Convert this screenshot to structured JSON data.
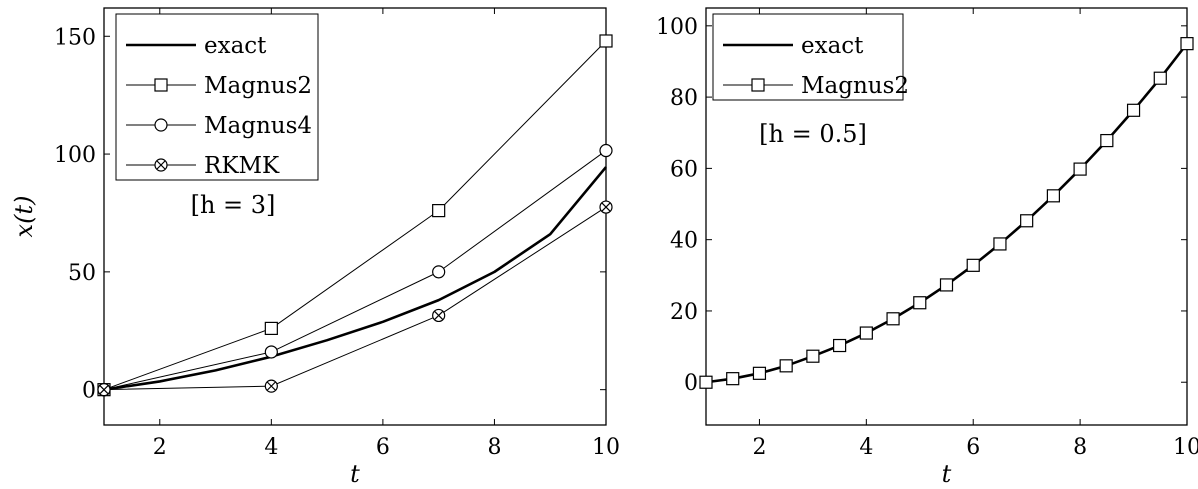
{
  "chart_data": [
    {
      "type": "line",
      "xlabel": "t",
      "ylabel": "x(t)",
      "xlim": [
        1,
        10
      ],
      "ylim": [
        -15,
        162
      ],
      "xticks": [
        "2",
        "4",
        "6",
        "8",
        "10"
      ],
      "yticks": [
        "0",
        "50",
        "100",
        "150"
      ],
      "grid": false,
      "legend_position": "top-left",
      "annotation": "[h = 3]",
      "series": [
        {
          "name": "exact",
          "marker": "none",
          "x": [
            1,
            2,
            3,
            4,
            5,
            6,
            7,
            8,
            9,
            10
          ],
          "y": [
            0,
            3.5,
            8.2,
            14,
            21,
            28.8,
            38,
            50,
            66,
            94.5
          ]
        },
        {
          "name": "Magnus2",
          "marker": "square",
          "x": [
            1,
            4,
            7,
            10
          ],
          "y": [
            0,
            26,
            76,
            148
          ]
        },
        {
          "name": "Magnus4",
          "marker": "circle",
          "x": [
            1,
            4,
            7,
            10
          ],
          "y": [
            0,
            16,
            50,
            101.5
          ]
        },
        {
          "name": "RKMK",
          "marker": "otimes",
          "x": [
            1,
            4,
            7,
            10
          ],
          "y": [
            0,
            1.5,
            31.5,
            77.5
          ]
        }
      ]
    },
    {
      "type": "line",
      "xlabel": "t",
      "ylabel": "",
      "xlim": [
        1,
        10
      ],
      "ylim": [
        -12,
        105
      ],
      "xticks": [
        "2",
        "4",
        "6",
        "8",
        "10"
      ],
      "yticks": [
        "0",
        "20",
        "40",
        "60",
        "80",
        "100"
      ],
      "grid": false,
      "legend_position": "top-left",
      "annotation": "[h = 0.5]",
      "series": [
        {
          "name": "exact",
          "marker": "none",
          "x": [
            1,
            1.5,
            2,
            2.5,
            3,
            3.5,
            4,
            4.5,
            5,
            5.5,
            6,
            6.5,
            7,
            7.5,
            8,
            8.5,
            9,
            9.5,
            10
          ],
          "y": [
            0,
            1,
            2.5,
            4.6,
            7.3,
            10.3,
            13.8,
            17.8,
            22.3,
            27.3,
            32.8,
            38.8,
            45.3,
            52.3,
            59.8,
            67.8,
            76.3,
            85.3,
            95
          ]
        },
        {
          "name": "Magnus2",
          "marker": "square",
          "x": [
            1,
            1.5,
            2,
            2.5,
            3,
            3.5,
            4,
            4.5,
            5,
            5.5,
            6,
            6.5,
            7,
            7.5,
            8,
            8.5,
            9,
            9.5,
            10
          ],
          "y": [
            0,
            1,
            2.5,
            4.6,
            7.3,
            10.3,
            13.8,
            17.8,
            22.3,
            27.3,
            32.8,
            38.8,
            45.3,
            52.3,
            59.8,
            67.8,
            76.3,
            85.3,
            95
          ]
        }
      ]
    }
  ]
}
